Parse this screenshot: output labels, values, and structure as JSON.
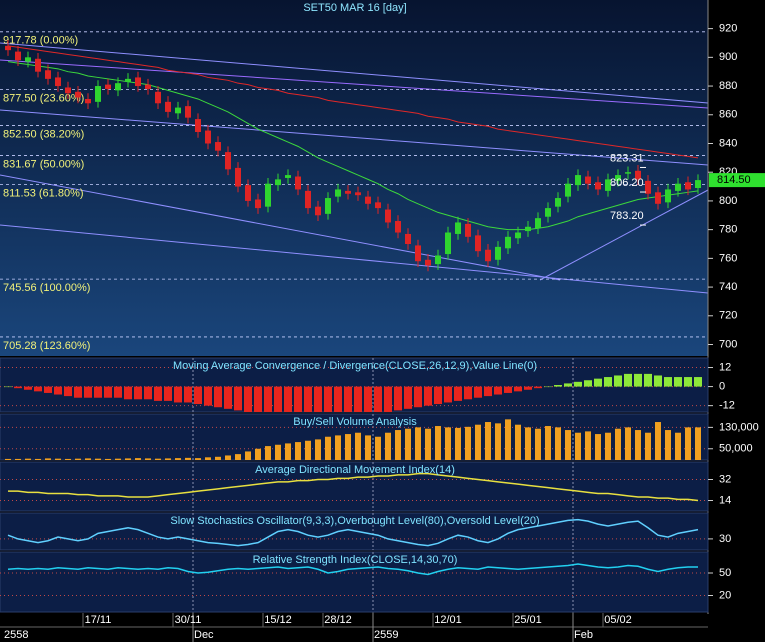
{
  "chart_data": {
    "type": "candlestick",
    "title": "SET50 MAR 16   [day]",
    "categories": [
      null,
      null,
      null,
      null,
      null,
      null,
      null,
      null,
      null,
      "17/11",
      null,
      null,
      null,
      null,
      null,
      null,
      null,
      null,
      "30/11",
      null,
      null,
      null,
      null,
      null,
      null,
      null,
      null,
      "15/12",
      null,
      null,
      null,
      null,
      null,
      "28/12",
      null,
      null,
      null,
      null,
      null,
      null,
      null,
      null,
      null,
      null,
      "12/01",
      null,
      null,
      null,
      null,
      null,
      null,
      null,
      "25/01",
      null,
      null,
      null,
      null,
      null,
      null,
      null,
      null,
      "05/02",
      null,
      null,
      null,
      null,
      null,
      null,
      null,
      null
    ],
    "periods": [
      "2558",
      null,
      null,
      null,
      null,
      null,
      null,
      null,
      null,
      null,
      null,
      null,
      null,
      null,
      null,
      null,
      null,
      null,
      null,
      "Dec",
      null,
      null,
      null,
      null,
      null,
      null,
      null,
      null,
      null,
      null,
      null,
      null,
      null,
      null,
      null,
      null,
      null,
      "2559",
      null,
      null,
      null,
      null,
      null,
      null,
      null,
      null,
      null,
      null,
      null,
      null,
      null,
      null,
      null,
      null,
      null,
      null,
      null,
      "Feb",
      null,
      null,
      null,
      null,
      null,
      null,
      null,
      null,
      null,
      null,
      null,
      null
    ],
    "open": [
      908,
      904,
      897,
      899,
      891,
      886,
      879,
      876,
      871,
      869,
      881,
      877,
      883,
      886,
      881,
      876,
      869,
      861,
      866,
      857,
      849,
      841,
      834,
      823,
      811,
      801,
      796,
      811,
      816,
      817,
      807,
      796,
      791,
      803,
      807,
      806,
      803,
      799,
      794,
      786,
      777,
      769,
      759,
      756,
      763,
      777,
      784,
      776,
      766,
      759,
      767,
      774,
      779,
      781,
      789,
      796,
      803,
      811,
      817,
      813,
      807,
      814,
      819,
      821,
      814,
      806,
      799,
      807,
      813,
      809
    ],
    "high": [
      912,
      908,
      904,
      903,
      895,
      890,
      883,
      880,
      875,
      884,
      885,
      886,
      889,
      890,
      885,
      880,
      873,
      869,
      870,
      861,
      853,
      845,
      838,
      827,
      815,
      805,
      816,
      819,
      822,
      821,
      811,
      800,
      806,
      812,
      811,
      810,
      807,
      803,
      798,
      790,
      781,
      773,
      763,
      766,
      782,
      789,
      788,
      780,
      770,
      772,
      779,
      782,
      786,
      792,
      799,
      806,
      816,
      822,
      821,
      817,
      819,
      822,
      824,
      825,
      818,
      810,
      812,
      816,
      817,
      818.5
    ],
    "low": [
      901,
      894,
      893,
      886,
      881,
      876,
      871,
      868,
      864,
      865,
      874,
      873,
      879,
      876,
      874,
      864,
      858,
      857,
      854,
      844,
      836,
      831,
      818,
      806,
      796,
      791,
      792,
      807,
      812,
      804,
      791,
      786,
      787,
      799,
      801,
      800,
      794,
      791,
      781,
      774,
      766,
      754,
      751,
      752,
      759,
      773,
      771,
      761,
      754,
      755,
      763,
      770,
      775,
      777,
      785,
      792,
      799,
      807,
      808,
      804,
      803,
      810,
      815,
      811,
      801,
      794,
      795,
      803,
      804,
      805
    ],
    "close": [
      905,
      898,
      900,
      890,
      885,
      880,
      875,
      872,
      868,
      880,
      878,
      882,
      885,
      880,
      878,
      868,
      862,
      865,
      858,
      848,
      840,
      835,
      822,
      810,
      800,
      795,
      812,
      815,
      818,
      808,
      795,
      790,
      802,
      808,
      805,
      804,
      798,
      795,
      785,
      778,
      770,
      758,
      755,
      762,
      778,
      785,
      775,
      765,
      758,
      768,
      775,
      778,
      782,
      788,
      795,
      802,
      812,
      818,
      812,
      808,
      815,
      818,
      820,
      815,
      805,
      798,
      808,
      812,
      808,
      814.5
    ],
    "up_color": "#2fd52f",
    "down_color": "#e02424",
    "ma_lines": [
      {
        "color": "#3cd83c",
        "values": [
          897,
          896,
          895,
          894,
          893,
          892,
          890,
          889,
          887,
          886,
          885,
          884,
          883,
          882,
          881,
          879,
          877,
          875,
          873,
          871,
          868,
          865,
          862,
          858,
          854,
          850,
          847,
          844,
          841,
          838,
          834,
          830,
          827,
          824,
          821,
          818,
          815,
          812,
          808,
          805,
          801,
          798,
          795,
          792,
          790,
          788,
          786,
          784,
          782,
          781,
          780,
          780,
          780,
          781,
          782,
          784,
          786,
          789,
          791,
          793,
          795,
          797,
          799,
          801,
          802,
          803,
          804,
          805,
          806,
          807
        ]
      },
      {
        "color": "#e02828",
        "values": [
          908,
          907,
          906,
          905,
          904,
          903,
          902,
          901,
          900,
          899,
          898,
          897,
          896,
          895,
          894,
          893,
          891,
          890,
          889,
          888,
          886,
          885,
          884,
          882,
          881,
          879,
          878,
          877,
          875,
          874,
          873,
          872,
          870,
          869,
          868,
          867,
          866,
          865,
          864,
          863,
          862,
          861,
          859,
          858,
          857,
          855,
          854,
          853,
          852,
          850,
          849,
          848,
          847,
          846,
          845,
          844,
          843,
          842,
          841,
          840,
          839,
          838,
          837,
          836,
          835,
          834,
          833,
          832,
          831,
          830
        ]
      }
    ],
    "ylim": [
      692,
      926
    ],
    "yticks": [
      920,
      900,
      880,
      860,
      840,
      820,
      800,
      780,
      760,
      740,
      720,
      700
    ],
    "fib_levels": [
      {
        "value": 917.78,
        "label": "917.78 (0.00%)"
      },
      {
        "value": 877.5,
        "label": "877.50 (23.60%)"
      },
      {
        "value": 852.5,
        "label": "852.50 (38.20%)"
      },
      {
        "value": 831.67,
        "label": "831.67 (50.00%)"
      },
      {
        "value": 811.53,
        "label": "811.53 (61.80%)"
      },
      {
        "value": 745.56,
        "label": "745.56 (100.00%)"
      },
      {
        "value": 705.28,
        "label": "705.28 (123.60%)"
      }
    ],
    "annotations": [
      823.31,
      {
        "value": 806.2,
        "label": "806.20"
      },
      {
        "value": 783.2,
        "label": "783.20"
      }
    ],
    "last_price": {
      "value": 814.5,
      "label": "814.50"
    },
    "indicators": [
      {
        "type": "histogram",
        "title": "Moving Average Convergence / Divergence(CLOSE,26,12,9),Value Line(0)",
        "values": [
          0,
          -1,
          -2,
          -3,
          -4,
          -5,
          -6,
          -7,
          -7,
          -7,
          -7,
          -7,
          -8,
          -8,
          -8,
          -9,
          -9,
          -10,
          -10,
          -11,
          -12,
          -13,
          -14,
          -15,
          -16,
          -17,
          -17,
          -17,
          -18,
          -18,
          -19,
          -19,
          -19,
          -19,
          -19,
          -18,
          -18,
          -17,
          -16,
          -15,
          -14,
          -13,
          -12,
          -11,
          -10,
          -9,
          -8,
          -7,
          -6,
          -5,
          -4,
          -3,
          -2,
          -1,
          0,
          1,
          2,
          3,
          4,
          5,
          6,
          7,
          8,
          8,
          8,
          7,
          6,
          6,
          6,
          6
        ],
        "pos_color": "#8ee83a",
        "neg_color": "#e8251d",
        "ylim": [
          -16,
          18
        ],
        "yticks": [
          12,
          0,
          -12
        ]
      },
      {
        "type": "bar",
        "title": "Buy/Sell Volume Analysis",
        "values": [
          12000,
          12000,
          13000,
          12000,
          14000,
          13000,
          12000,
          13000,
          14000,
          13000,
          12000,
          13000,
          14000,
          15000,
          14000,
          13000,
          14000,
          15000,
          16000,
          15000,
          18000,
          20000,
          25000,
          30000,
          40000,
          50000,
          60000,
          65000,
          70000,
          75000,
          80000,
          85000,
          95000,
          100000,
          105000,
          110000,
          100000,
          95000,
          110000,
          120000,
          125000,
          130000,
          125000,
          135000,
          130000,
          128000,
          132000,
          140000,
          150000,
          145000,
          160000,
          140000,
          130000,
          125000,
          135000,
          130000,
          120000,
          110000,
          115000,
          105000,
          110000,
          125000,
          130000,
          120000,
          110000,
          150000,
          120000,
          110000,
          130000,
          130000
        ],
        "color": "#f0a020",
        "ylim": [
          8000,
          180000
        ],
        "yticks": [
          {
            "value": 130000,
            "label": "130,000"
          },
          {
            "value": 50000,
            "label": "50,000"
          }
        ]
      },
      {
        "type": "line",
        "title": "Average Directional Movement Index(14)",
        "values": [
          22,
          22,
          21,
          21,
          20,
          20,
          20,
          19,
          19,
          18,
          18,
          18,
          17,
          17,
          17,
          18,
          19,
          20,
          21,
          22,
          23,
          24,
          25,
          26,
          27,
          28,
          29,
          30,
          30,
          31,
          31,
          32,
          32,
          33,
          33,
          34,
          34,
          35,
          35,
          36,
          36,
          37,
          37,
          36,
          35,
          34,
          33,
          32,
          31,
          30,
          29,
          28,
          27,
          26,
          25,
          24,
          23,
          22,
          21,
          20,
          20,
          19,
          18,
          17,
          17,
          16,
          16,
          15,
          15,
          14
        ],
        "color": "#e8e040",
        "ylim": [
          5,
          47
        ],
        "yticks": [
          32,
          14
        ]
      },
      {
        "type": "line",
        "title": "Slow Stochastics Oscillator(9,3,3),Overbought Level(80),Oversold Level(20)",
        "values": [
          40,
          30,
          25,
          20,
          25,
          35,
          30,
          25,
          30,
          45,
          50,
          55,
          60,
          55,
          45,
          35,
          30,
          35,
          30,
          25,
          20,
          18,
          15,
          12,
          15,
          20,
          35,
          50,
          55,
          50,
          40,
          35,
          40,
          50,
          55,
          50,
          45,
          40,
          30,
          25,
          20,
          15,
          12,
          18,
          30,
          40,
          35,
          25,
          20,
          30,
          45,
          55,
          60,
          65,
          70,
          75,
          80,
          82,
          78,
          70,
          65,
          70,
          75,
          78,
          60,
          40,
          35,
          45,
          50,
          55
        ],
        "color": "#60d0ff",
        "ylim": [
          0,
          100
        ],
        "yticks": [
          30
        ]
      },
      {
        "type": "line",
        "title": "Relative Strength Index(CLOSE,14,30,70)",
        "values": [
          55,
          56,
          55,
          56,
          55,
          57,
          56,
          55,
          57,
          56,
          55,
          57,
          56,
          55,
          56,
          55,
          57,
          56,
          52,
          50,
          51,
          53,
          55,
          56,
          55,
          56,
          57,
          58,
          56,
          57,
          58,
          55,
          50,
          52,
          55,
          56,
          57,
          58,
          56,
          55,
          53,
          50,
          48,
          52,
          55,
          57,
          56,
          55,
          58,
          57,
          56,
          55,
          56,
          57,
          58,
          59,
          60,
          62,
          60,
          58,
          57,
          58,
          60,
          59,
          55,
          52,
          55,
          57,
          58,
          58
        ],
        "color": "#22d0f0",
        "ylim": [
          -2,
          78
        ],
        "yticks": [
          50,
          20
        ]
      }
    ]
  }
}
